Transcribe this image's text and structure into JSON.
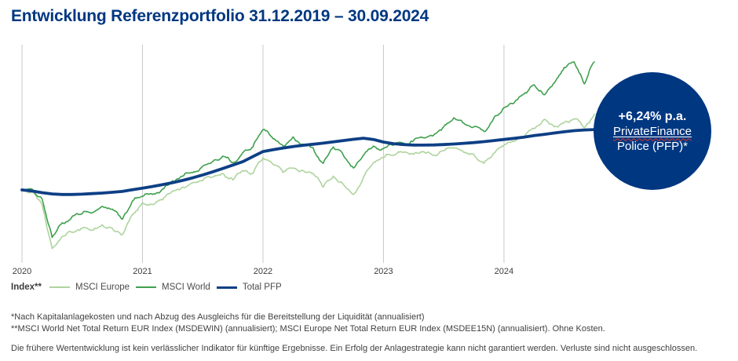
{
  "title": "Entwicklung Referenzportfolio 31.12.2019 – 30.09.2024",
  "badge": {
    "return_label": "+6,24% p.a.",
    "product_name": "PrivateFinance",
    "product_suffix": "Police (PFP)*",
    "background": "#003781",
    "text_color": "#ffffff"
  },
  "legend": {
    "title": "Index**"
  },
  "footnotes": [
    "*Nach Kapitalanlagekosten und nach Abzug des Ausgleichs für die Bereitstellung der Liquidität (annualisiert)",
    "**MSCI World Net Total Return EUR Index (MSDEWIN) (annualisiert); MSCI Europe Net Total Return EUR Index (MSDEE15N) (annualisiert). Ohne Kosten.",
    "Die frühere Wertentwicklung ist kein verlässlicher Indikator für künftige Ergebnisse. Ein Erfolg der Anlagestrategie kann nicht garantiert werden. Verluste sind nicht ausgeschlossen."
  ],
  "colors": {
    "brand_blue": "#003781",
    "gridline": "#c9c9c9",
    "axis_text": "#3c3c3c",
    "legend_text": "#4b4b4b",
    "footnote_text": "#3f3f3f",
    "spellcheck_red": "#e0352b"
  },
  "chart_data": {
    "type": "line",
    "title": "Entwicklung Referenzportfolio 31.12.2019 – 30.09.2024",
    "period": {
      "start": "31.12.2019",
      "end": "30.09.2024"
    },
    "x_unit": "months since 31.12.2019 (monthly samples, 0–57)",
    "y_axis": "indexed performance, 31.12.2019 = 100 (no y-axis shown in chart)",
    "y_range_estimate": [
      65,
      172
    ],
    "grid": "vertical year gridlines only",
    "legend_position": "bottom-left",
    "x_ticks": [
      {
        "label": "2020",
        "month": 0
      },
      {
        "label": "2021",
        "month": 12
      },
      {
        "label": "2022",
        "month": 24
      },
      {
        "label": "2023",
        "month": 36
      },
      {
        "label": "2024",
        "month": 48
      }
    ],
    "series": [
      {
        "key": "msci_europe",
        "name": "MSCI Europe",
        "color": "#aed49e",
        "values": [
          100,
          99,
          92,
          68,
          74.5,
          77,
          79,
          78,
          81,
          79,
          75.5,
          86.5,
          93,
          92,
          94.5,
          99.5,
          101.5,
          104,
          105,
          107,
          109,
          105.5,
          110.5,
          109,
          117.5,
          114,
          109.5,
          112,
          110.5,
          109,
          101.5,
          107.5,
          103,
          97.5,
          107,
          115,
          117.5,
          119,
          120.5,
          119.5,
          121,
          119,
          121.5,
          123,
          120.5,
          119.5,
          114.5,
          120,
          124.5,
          126.5,
          129,
          133.5,
          138.5,
          134.5,
          137,
          139,
          134,
          141.5
        ]
      },
      {
        "key": "msci_world",
        "name": "MSCI World",
        "color": "#3fa04e",
        "values": [
          100,
          100.5,
          95,
          74,
          82,
          85.5,
          87,
          87.5,
          91,
          89.5,
          84,
          94,
          96.5,
          97.5,
          100.5,
          105,
          107.5,
          109.5,
          113,
          115.5,
          118.5,
          115,
          120.5,
          123.5,
          133,
          128,
          124,
          129,
          125,
          123,
          114.5,
          123.5,
          119,
          112,
          119,
          124,
          122.5,
          124.5,
          125.5,
          127,
          128.5,
          130,
          134.5,
          139.5,
          136.5,
          134.5,
          132,
          139.5,
          145,
          147.5,
          152.5,
          157.5,
          152,
          158.5,
          167,
          170,
          158,
          170
        ]
      },
      {
        "key": "total_pfp",
        "name": "Total PFP",
        "color": "#0d3f85",
        "annualized_return": "+6,24% p.a.",
        "values": [
          100,
          99.4,
          98.5,
          97.8,
          97.5,
          97.5,
          97.7,
          98,
          98.3,
          98.7,
          99.2,
          100.1,
          101,
          101.9,
          102.9,
          104,
          105.2,
          106.6,
          108.2,
          109.9,
          111.7,
          113.6,
          115.5,
          118.3,
          121,
          122,
          122.9,
          123.7,
          124.4,
          125,
          125.6,
          126.3,
          127,
          127.7,
          128.3,
          127.6,
          126.2,
          125.3,
          124.8,
          124.5,
          124.5,
          124.6,
          124.8,
          125.1,
          125.5,
          125.9,
          126.4,
          127,
          127.6,
          128.2,
          128.9,
          129.7,
          130.4,
          131.1,
          131.8,
          132.4,
          132.8,
          133
        ]
      }
    ]
  }
}
